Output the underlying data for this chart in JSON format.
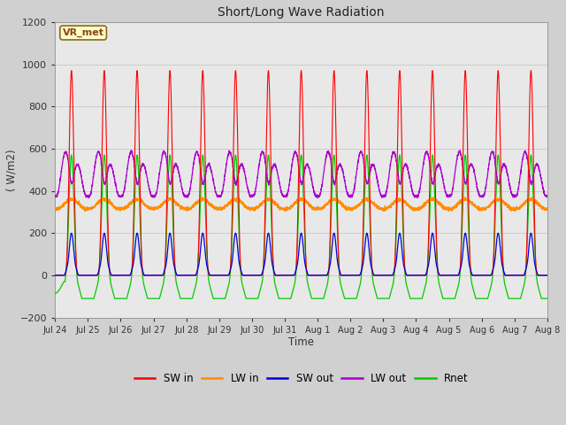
{
  "title": "Short/Long Wave Radiation",
  "xlabel": "Time",
  "ylabel": "( W/m2)",
  "ylim": [
    -200,
    1200
  ],
  "annotation": "VR_met",
  "fig_bg": "#d0d0d0",
  "plot_bg": "#e8e8e8",
  "series": {
    "SW_in": {
      "color": "#ff0000",
      "label": "SW in"
    },
    "LW_in": {
      "color": "#ff8c00",
      "label": "LW in"
    },
    "SW_out": {
      "color": "#0000dd",
      "label": "SW out"
    },
    "LW_out": {
      "color": "#aa00cc",
      "label": "LW out"
    },
    "Rnet": {
      "color": "#00cc00",
      "label": "Rnet"
    }
  },
  "tick_labels": [
    "Jul 24",
    "Jul 25",
    "Jul 26",
    "Jul 27",
    "Jul 28",
    "Jul 29",
    "Jul 30",
    "Jul 31",
    "Aug 1",
    "Aug 2",
    "Aug 3",
    "Aug 4",
    "Aug 5",
    "Aug 6",
    "Aug 7",
    "Aug 8"
  ],
  "n_days": 15,
  "yticks": [
    -200,
    0,
    200,
    400,
    600,
    800,
    1000,
    1200
  ],
  "grid_color": "#cccccc",
  "legend_items": [
    {
      "label": "SW in",
      "color": "#ff0000"
    },
    {
      "label": "LW in",
      "color": "#ff8c00"
    },
    {
      "label": "SW out",
      "color": "#0000dd"
    },
    {
      "label": "LW out",
      "color": "#aa00cc"
    },
    {
      "label": "Rnet",
      "color": "#00cc00"
    }
  ]
}
